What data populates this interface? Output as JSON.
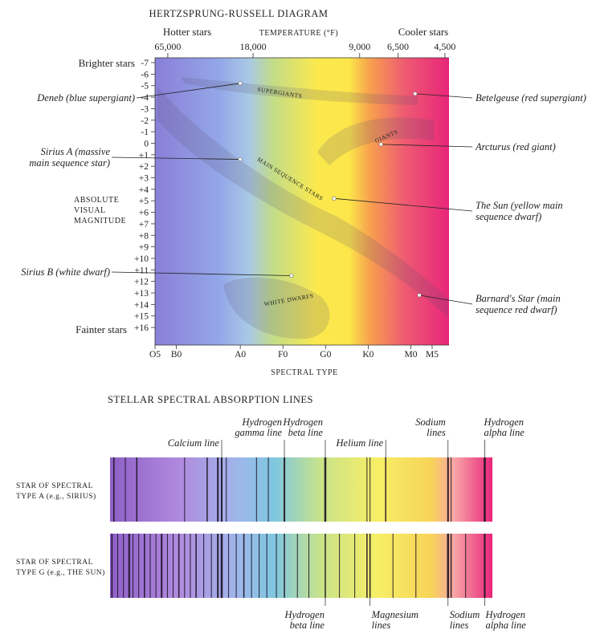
{
  "hr_diagram": {
    "title": "HERTZSPRUNG-RUSSELL DIAGRAM",
    "hotter_label": "Hotter stars",
    "cooler_label": "Cooler stars",
    "temperature_label": "TEMPERATURE (°F)",
    "temperature_ticks": [
      {
        "label": "65,000",
        "type": 0.3
      },
      {
        "label": "18,000",
        "type": 2.3
      },
      {
        "label": "9,000",
        "type": 4.8
      },
      {
        "label": "6,500",
        "type": 5.7
      },
      {
        "label": "4,500",
        "type": 6.8
      }
    ],
    "brighter_label": "Brighter stars",
    "fainter_label": "Fainter stars",
    "y_axis_title": [
      "ABSOLUTE",
      "VISUAL",
      "MAGNITUDE"
    ],
    "magnitude_ticks": [
      "-7",
      "-6",
      "-5",
      "-4",
      "-3",
      "-2",
      "-1",
      "0",
      "+1",
      "+2",
      "+3",
      "+4",
      "+5",
      "+6",
      "+7",
      "+8",
      "+9",
      "+10",
      "+11",
      "+12",
      "+13",
      "+14",
      "+15",
      "+16"
    ],
    "spectral_label": "SPECTRAL TYPE",
    "spectral_ticks": [
      {
        "label": "O5",
        "type": 0
      },
      {
        "label": "B0",
        "type": 0.5
      },
      {
        "label": "A0",
        "type": 2
      },
      {
        "label": "F0",
        "type": 3
      },
      {
        "label": "G0",
        "type": 4
      },
      {
        "label": "K0",
        "type": 5
      },
      {
        "label": "M0",
        "type": 6
      },
      {
        "label": "M5",
        "type": 6.5
      }
    ],
    "regions": [
      {
        "label": "SUPERGIANTS"
      },
      {
        "label": "GIANTS"
      },
      {
        "label": "MAIN SEQUENCE STARS"
      },
      {
        "label": "WHITE DWARFS"
      }
    ],
    "stars": [
      {
        "lines": [
          "Deneb (blue supergiant)"
        ],
        "side": "left",
        "type": 2.0,
        "mag": -5.2
      },
      {
        "lines": [
          "Sirius A (massive",
          "main sequence star)"
        ],
        "side": "left",
        "type": 2.0,
        "mag": 1.4
      },
      {
        "lines": [
          "Sirius B (white dwarf)"
        ],
        "side": "left",
        "type": 3.2,
        "mag": 11.5
      },
      {
        "lines": [
          "Betelgeuse (red supergiant)"
        ],
        "side": "right",
        "type": 6.1,
        "mag": -4.3
      },
      {
        "lines": [
          "Arcturus (red giant)"
        ],
        "side": "right",
        "type": 5.3,
        "mag": 0.1
      },
      {
        "lines": [
          "The Sun (yellow main",
          "sequence dwarf)"
        ],
        "side": "right",
        "type": 4.2,
        "mag": 4.8
      },
      {
        "lines": [
          "Barnard's Star (main",
          "sequence red dwarf)"
        ],
        "side": "right",
        "type": 6.2,
        "mag": 13.2
      }
    ],
    "colors": {
      "violet": "#8a7fd8",
      "blue": "#93a7e8",
      "green": "#b7d98a",
      "yellow": "#fbe94e",
      "orange": "#f7a14e",
      "red": "#ea2f6a",
      "magenta": "#e8267a"
    }
  },
  "spectra": {
    "title": "STELLAR SPECTRAL ABSORPTION LINES",
    "top_labels": [
      {
        "lines": [
          "Calcium line"
        ],
        "pos": 0.292
      },
      {
        "lines": [
          "Hydrogen",
          "gamma line"
        ],
        "pos": 0.456
      },
      {
        "lines": [
          "Hydrogen",
          "beta line"
        ],
        "pos": 0.563
      },
      {
        "lines": [
          "Helium line"
        ],
        "pos": 0.721
      },
      {
        "lines": [
          "Sodium",
          "lines"
        ],
        "pos": 0.884
      },
      {
        "lines": [
          "Hydrogen",
          "alpha line"
        ],
        "pos": 0.98
      }
    ],
    "bottom_labels": [
      {
        "lines": [
          "Hydrogen",
          "beta line"
        ],
        "pos": 0.563
      },
      {
        "lines": [
          "Magnesium",
          "lines"
        ],
        "pos": 0.68
      },
      {
        "lines": [
          "Sodium",
          "lines"
        ],
        "pos": 0.884
      },
      {
        "lines": [
          "Hydrogen",
          "alpha line"
        ],
        "pos": 0.98
      }
    ],
    "bands": [
      {
        "label": [
          "STAR OF SPECTRAL",
          "TYPE A (e.g., SIRIUS)"
        ],
        "lines": [
          {
            "pos": 0.01,
            "w": 1.5
          },
          {
            "pos": 0.04,
            "w": 1
          },
          {
            "pos": 0.07,
            "w": 1.5
          },
          {
            "pos": 0.195,
            "w": 1
          },
          {
            "pos": 0.254,
            "w": 1.5
          },
          {
            "pos": 0.282,
            "w": 2
          },
          {
            "pos": 0.292,
            "w": 2
          },
          {
            "pos": 0.304,
            "w": 1
          },
          {
            "pos": 0.383,
            "w": 1
          },
          {
            "pos": 0.414,
            "w": 1
          },
          {
            "pos": 0.456,
            "w": 2
          },
          {
            "pos": 0.563,
            "w": 2.5
          },
          {
            "pos": 0.672,
            "w": 1
          },
          {
            "pos": 0.68,
            "w": 1
          },
          {
            "pos": 0.721,
            "w": 1.5
          },
          {
            "pos": 0.884,
            "w": 2
          },
          {
            "pos": 0.892,
            "w": 1
          },
          {
            "pos": 0.98,
            "w": 2.5
          }
        ]
      },
      {
        "label": [
          "STAR OF SPECTRAL",
          "TYPE G (e.g., THE SUN)"
        ],
        "lines": [
          {
            "pos": 0.005,
            "w": 1.5
          },
          {
            "pos": 0.02,
            "w": 1
          },
          {
            "pos": 0.035,
            "w": 1
          },
          {
            "pos": 0.05,
            "w": 2
          },
          {
            "pos": 0.06,
            "w": 1
          },
          {
            "pos": 0.075,
            "w": 1
          },
          {
            "pos": 0.09,
            "w": 1.5
          },
          {
            "pos": 0.105,
            "w": 1
          },
          {
            "pos": 0.12,
            "w": 1
          },
          {
            "pos": 0.135,
            "w": 2
          },
          {
            "pos": 0.15,
            "w": 1
          },
          {
            "pos": 0.165,
            "w": 1
          },
          {
            "pos": 0.18,
            "w": 1.5
          },
          {
            "pos": 0.195,
            "w": 1
          },
          {
            "pos": 0.21,
            "w": 1
          },
          {
            "pos": 0.225,
            "w": 1.5
          },
          {
            "pos": 0.245,
            "w": 1
          },
          {
            "pos": 0.265,
            "w": 1
          },
          {
            "pos": 0.282,
            "w": 2
          },
          {
            "pos": 0.292,
            "w": 2.5
          },
          {
            "pos": 0.31,
            "w": 1
          },
          {
            "pos": 0.33,
            "w": 1
          },
          {
            "pos": 0.35,
            "w": 1.5
          },
          {
            "pos": 0.37,
            "w": 1
          },
          {
            "pos": 0.39,
            "w": 1
          },
          {
            "pos": 0.41,
            "w": 1
          },
          {
            "pos": 0.435,
            "w": 1
          },
          {
            "pos": 0.456,
            "w": 1.5
          },
          {
            "pos": 0.49,
            "w": 1
          },
          {
            "pos": 0.52,
            "w": 1
          },
          {
            "pos": 0.563,
            "w": 1.5
          },
          {
            "pos": 0.6,
            "w": 1
          },
          {
            "pos": 0.64,
            "w": 1
          },
          {
            "pos": 0.672,
            "w": 1.5
          },
          {
            "pos": 0.68,
            "w": 1.5
          },
          {
            "pos": 0.74,
            "w": 1
          },
          {
            "pos": 0.8,
            "w": 1
          },
          {
            "pos": 0.884,
            "w": 2.5
          },
          {
            "pos": 0.892,
            "w": 1.5
          },
          {
            "pos": 0.93,
            "w": 1
          },
          {
            "pos": 0.98,
            "w": 2
          }
        ]
      }
    ]
  }
}
